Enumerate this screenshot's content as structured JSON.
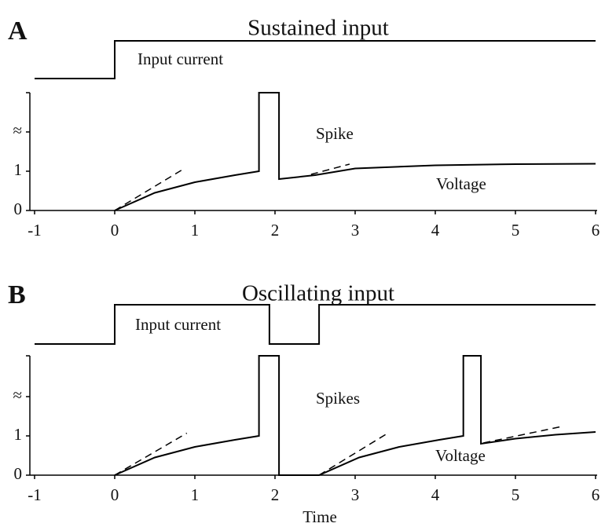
{
  "chart_data": [
    {
      "type": "line",
      "panel_label": "A",
      "title": "Sustained input",
      "xlim": [
        -1,
        6
      ],
      "xticks": [
        -1,
        0,
        1,
        2,
        3,
        4,
        5,
        6
      ],
      "ylim": [
        0,
        4.4
      ],
      "yticks": [
        0,
        1,
        {
          "value": 2,
          "label": "≈"
        }
      ],
      "series": [
        {
          "name": "Input current",
          "color": "#000",
          "x": [
            -1,
            0,
            0,
            6
          ],
          "values": [
            3.36,
            3.36,
            4.32,
            4.32
          ]
        },
        {
          "name": "Voltage",
          "color": "#000",
          "x": [
            0,
            0.5,
            1,
            1.5,
            1.8,
            1.8,
            2.05,
            2.05,
            2.5,
            3,
            4,
            5,
            6
          ],
          "values": [
            0,
            0.45,
            0.72,
            0.9,
            1.0,
            3,
            3,
            0.8,
            0.9,
            1.07,
            1.15,
            1.18,
            1.19
          ]
        }
      ],
      "tangents": [
        {
          "x": [
            0,
            0.87
          ],
          "values": [
            0,
            1.07
          ]
        },
        {
          "x": [
            2.45,
            2.93
          ],
          "values": [
            0.92,
            1.18
          ]
        }
      ],
      "annotations": [
        "Spike"
      ]
    },
    {
      "type": "line",
      "panel_label": "B",
      "title": "Oscillating input",
      "x_label": "Time",
      "xlim": [
        -1,
        6
      ],
      "xticks": [
        -1,
        0,
        1,
        2,
        3,
        4,
        5,
        6
      ],
      "ylim": [
        0,
        4.4
      ],
      "yticks": [
        0,
        1,
        {
          "value": 2,
          "label": "≈"
        }
      ],
      "series": [
        {
          "name": "Input current",
          "color": "#000",
          "x": [
            -1,
            0,
            0,
            1.93,
            1.93,
            2.55,
            2.55,
            6
          ],
          "values": [
            3.34,
            3.34,
            4.34,
            4.34,
            3.34,
            3.34,
            4.34,
            4.34
          ]
        },
        {
          "name": "Voltage",
          "color": "#000",
          "x": [
            0,
            0.5,
            1,
            1.5,
            1.8,
            1.8,
            2.05,
            2.05,
            2.55,
            3.05,
            3.55,
            4.05,
            4.35,
            4.35,
            4.57,
            4.57,
            5,
            5.5,
            6
          ],
          "values": [
            0,
            0.45,
            0.72,
            0.9,
            1.0,
            3.04,
            3.04,
            0,
            0,
            0.45,
            0.72,
            0.9,
            1.0,
            3.04,
            3.04,
            0.8,
            0.93,
            1.03,
            1.1
          ]
        }
      ],
      "tangents": [
        {
          "x": [
            0,
            0.9
          ],
          "values": [
            0,
            1.07
          ]
        },
        {
          "x": [
            2.55,
            3.4
          ],
          "values": [
            0,
            1.06
          ]
        },
        {
          "x": [
            4.6,
            5.58
          ],
          "values": [
            0.82,
            1.24
          ]
        }
      ],
      "annotations": [
        "Spikes"
      ]
    }
  ]
}
